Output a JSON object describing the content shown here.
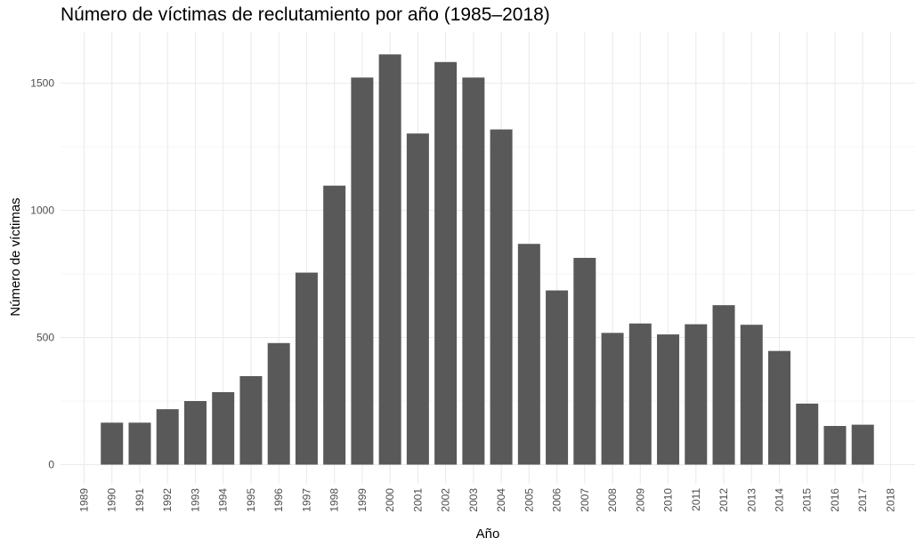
{
  "chart_data": {
    "type": "bar",
    "title": "Número de víctimas de reclutamiento por año (1985–2018)",
    "xlabel": "Año",
    "ylabel": "Número de víctimas",
    "categories": [
      "1989",
      "1990",
      "1991",
      "1992",
      "1993",
      "1994",
      "1995",
      "1996",
      "1997",
      "1998",
      "1999",
      "2000",
      "2001",
      "2002",
      "2003",
      "2004",
      "2005",
      "2006",
      "2007",
      "2008",
      "2009",
      "2010",
      "2011",
      "2012",
      "2013",
      "2014",
      "2015",
      "2016",
      "2017",
      "2018"
    ],
    "values": [
      0,
      165,
      165,
      218,
      250,
      285,
      348,
      478,
      755,
      1097,
      1522,
      1613,
      1302,
      1583,
      1522,
      1318,
      868,
      685,
      813,
      518,
      555,
      512,
      552,
      627,
      550,
      447,
      240,
      152,
      157,
      0
    ],
    "ylim": [
      0,
      1660
    ],
    "yticks": [
      0,
      500,
      1000,
      1500
    ],
    "grid": true,
    "legend": "none",
    "bar_color": "#595959",
    "grid_color": "#ebebeb"
  }
}
